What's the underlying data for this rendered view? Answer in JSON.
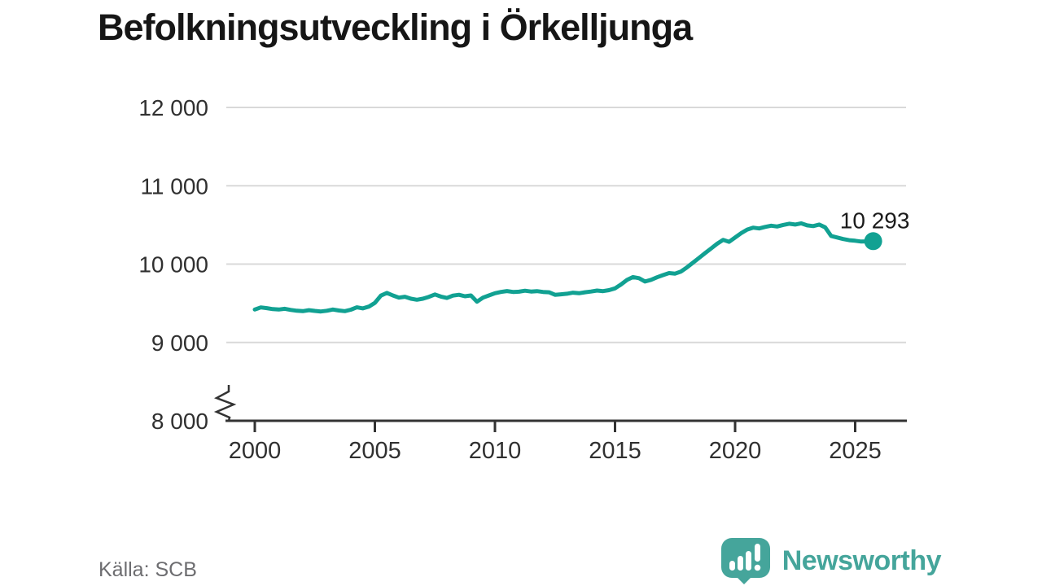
{
  "title": "Befolkningsutveckling i Örkelljunga",
  "source": "Källa: SCB",
  "branding": {
    "name": "Newsworthy",
    "color": "#45a59b",
    "icon": "bar-chart-exclamation-badge-icon"
  },
  "colors": {
    "line": "#11a192",
    "grid": "#d9d9d9",
    "axis": "#333333",
    "tick_label": "#303030",
    "annotation": "#1b1b1b",
    "background": "#ffffff"
  },
  "chart_data": {
    "type": "line",
    "title": "Befolkningsutveckling i Örkelljunga",
    "xlabel": "",
    "ylabel": "",
    "x_start_year": 2000,
    "x_step_years": 0.25,
    "values": [
      9420,
      9447,
      9438,
      9425,
      9420,
      9430,
      9415,
      9405,
      9400,
      9412,
      9403,
      9395,
      9405,
      9420,
      9408,
      9400,
      9418,
      9448,
      9435,
      9458,
      9505,
      9598,
      9632,
      9600,
      9572,
      9583,
      9558,
      9545,
      9558,
      9582,
      9612,
      9585,
      9568,
      9598,
      9608,
      9590,
      9600,
      9520,
      9572,
      9600,
      9628,
      9645,
      9656,
      9645,
      9648,
      9660,
      9650,
      9655,
      9645,
      9640,
      9608,
      9615,
      9622,
      9635,
      9628,
      9640,
      9650,
      9662,
      9655,
      9668,
      9690,
      9740,
      9798,
      9835,
      9820,
      9778,
      9800,
      9832,
      9860,
      9886,
      9878,
      9905,
      9960,
      10020,
      10080,
      10140,
      10200,
      10260,
      10310,
      10285,
      10340,
      10395,
      10440,
      10465,
      10455,
      10475,
      10490,
      10480,
      10500,
      10515,
      10505,
      10520,
      10495,
      10485,
      10505,
      10470,
      10360,
      10340,
      10320,
      10305,
      10298,
      10288,
      10290,
      10293
    ],
    "end_value": 10293,
    "end_label": "10 293",
    "xticks": [
      2000,
      2005,
      2010,
      2015,
      2020,
      2025
    ],
    "xtick_labels": [
      "2000",
      "2005",
      "2010",
      "2015",
      "2020",
      "2025"
    ],
    "yticks": [
      8000,
      9000,
      10000,
      11000,
      12000
    ],
    "ytick_labels": [
      "8 000",
      "9 000",
      "10 000",
      "11 000",
      "12 000"
    ],
    "ylim": [
      8000,
      12000
    ],
    "axis_break": true,
    "grid": "horizontal",
    "legend": "none"
  }
}
